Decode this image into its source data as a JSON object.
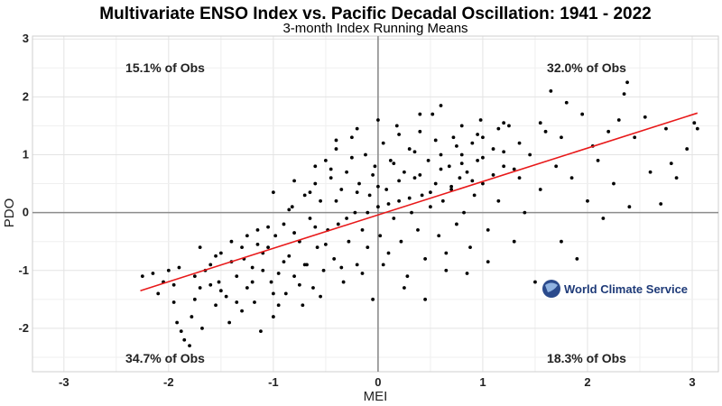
{
  "chart_data": {
    "type": "scatter",
    "title": "Multivariate ENSO Index vs. Pacific Decadal Oscillation: 1941 - 2022",
    "subtitle": "3-month Index Running Means",
    "xlabel": "MEI",
    "ylabel": "PDO",
    "xlim": [
      -3.3,
      3.25
    ],
    "ylim": [
      -2.75,
      3.05
    ],
    "xticks": [
      -3,
      -2,
      -1,
      0,
      1,
      2,
      3
    ],
    "yticks": [
      -2,
      -1,
      0,
      1,
      2,
      3
    ],
    "grid": true,
    "quadrant_labels": {
      "top_left": "15.1% of Obs",
      "top_right": "32.0% of Obs",
      "bottom_left": "34.7% of Obs",
      "bottom_right": "18.3% of Obs"
    },
    "fit_line": {
      "x": [
        -2.27,
        3.05
      ],
      "y": [
        -1.35,
        1.72
      ],
      "color": "#e8191a"
    },
    "point_color": "#000000",
    "points": [
      [
        -2.25,
        -1.1
      ],
      [
        -2.15,
        -1.05
      ],
      [
        -2.05,
        -1.2
      ],
      [
        -2.0,
        -1.0
      ],
      [
        -1.95,
        -1.25
      ],
      [
        -1.92,
        -1.9
      ],
      [
        -1.88,
        -2.05
      ],
      [
        -1.85,
        -2.2
      ],
      [
        -1.8,
        -2.3
      ],
      [
        -1.78,
        -1.8
      ],
      [
        -1.75,
        -1.5
      ],
      [
        -1.7,
        -1.3
      ],
      [
        -1.68,
        -2.0
      ],
      [
        -1.65,
        -1.0
      ],
      [
        -1.6,
        -0.9
      ],
      [
        -1.55,
        -1.6
      ],
      [
        -1.52,
        -1.2
      ],
      [
        -1.5,
        -0.7
      ],
      [
        -1.45,
        -1.45
      ],
      [
        -1.42,
        -1.9
      ],
      [
        -1.4,
        -0.5
      ],
      [
        -1.35,
        -1.1
      ],
      [
        -1.3,
        -1.7
      ],
      [
        -1.28,
        -0.8
      ],
      [
        -1.25,
        -1.3
      ],
      [
        -1.2,
        -0.95
      ],
      [
        -1.18,
        -1.55
      ],
      [
        -1.15,
        -0.3
      ],
      [
        -1.12,
        -2.05
      ],
      [
        -1.1,
        -1.0
      ],
      [
        -1.05,
        -0.6
      ],
      [
        -1.02,
        -1.2
      ],
      [
        -1.0,
        -1.8
      ],
      [
        -0.98,
        -0.4
      ],
      [
        -0.95,
        -1.05
      ],
      [
        -0.9,
        -0.2
      ],
      [
        -0.88,
        -1.4
      ],
      [
        -0.85,
        -0.75
      ],
      [
        -0.82,
        0.1
      ],
      [
        -0.8,
        -1.1
      ],
      [
        -0.75,
        -0.5
      ],
      [
        -0.72,
        -1.6
      ],
      [
        -0.7,
        0.3
      ],
      [
        -0.68,
        -0.9
      ],
      [
        -0.65,
        -0.1
      ],
      [
        -0.62,
        -1.3
      ],
      [
        -0.6,
        0.5
      ],
      [
        -0.58,
        -0.6
      ],
      [
        -0.55,
        0.2
      ],
      [
        -0.52,
        -1.0
      ],
      [
        -0.5,
        0.9
      ],
      [
        -0.48,
        -0.3
      ],
      [
        -0.45,
        0.6
      ],
      [
        -0.42,
        -0.8
      ],
      [
        -0.4,
        1.1
      ],
      [
        -0.38,
        -0.2
      ],
      [
        -0.35,
        0.4
      ],
      [
        -0.33,
        -1.2
      ],
      [
        -0.3,
        0.7
      ],
      [
        -0.28,
        -0.5
      ],
      [
        -0.25,
        1.3
      ],
      [
        -0.22,
        0.0
      ],
      [
        -0.2,
        -0.9
      ],
      [
        -0.18,
        0.5
      ],
      [
        -0.15,
        -0.3
      ],
      [
        -0.12,
        1.0
      ],
      [
        -0.1,
        -0.6
      ],
      [
        -0.08,
        0.3
      ],
      [
        -0.05,
        -1.5
      ],
      [
        -0.03,
        0.8
      ],
      [
        0.0,
        0.1
      ],
      [
        0.02,
        -0.4
      ],
      [
        0.05,
        1.2
      ],
      [
        0.08,
        0.4
      ],
      [
        0.1,
        -0.7
      ],
      [
        0.12,
        0.9
      ],
      [
        0.15,
        -0.1
      ],
      [
        0.18,
        1.5
      ],
      [
        0.2,
        0.2
      ],
      [
        0.22,
        -0.5
      ],
      [
        0.25,
        0.7
      ],
      [
        0.28,
        -1.1
      ],
      [
        0.3,
        1.1
      ],
      [
        0.32,
        0.0
      ],
      [
        0.35,
        0.6
      ],
      [
        0.38,
        -0.3
      ],
      [
        0.4,
        1.4
      ],
      [
        0.42,
        0.3
      ],
      [
        0.45,
        -0.8
      ],
      [
        0.48,
        0.9
      ],
      [
        0.5,
        0.1
      ],
      [
        0.52,
        1.7
      ],
      [
        0.55,
        0.5
      ],
      [
        0.58,
        -0.4
      ],
      [
        0.6,
        1.0
      ],
      [
        0.62,
        0.2
      ],
      [
        0.65,
        -1.0
      ],
      [
        0.68,
        0.8
      ],
      [
        0.7,
        0.4
      ],
      [
        0.72,
        1.3
      ],
      [
        0.75,
        -0.2
      ],
      [
        0.78,
        0.6
      ],
      [
        0.8,
        1.0
      ],
      [
        0.82,
        0.0
      ],
      [
        0.85,
        0.7
      ],
      [
        0.88,
        -0.6
      ],
      [
        0.9,
        1.2
      ],
      [
        0.92,
        0.3
      ],
      [
        0.95,
        0.9
      ],
      [
        0.98,
        1.6
      ],
      [
        1.0,
        0.5
      ],
      [
        1.05,
        -0.3
      ],
      [
        1.1,
        1.1
      ],
      [
        1.15,
        0.2
      ],
      [
        1.2,
        0.8
      ],
      [
        1.25,
        1.5
      ],
      [
        1.3,
        -0.5
      ],
      [
        1.35,
        0.6
      ],
      [
        1.4,
        0.0
      ],
      [
        1.45,
        1.0
      ],
      [
        1.5,
        -1.2
      ],
      [
        1.55,
        0.4
      ],
      [
        1.6,
        1.4
      ],
      [
        1.65,
        2.1
      ],
      [
        1.7,
        0.8
      ],
      [
        1.75,
        -0.5
      ],
      [
        1.8,
        1.9
      ],
      [
        1.85,
        0.6
      ],
      [
        1.9,
        -0.8
      ],
      [
        1.95,
        1.7
      ],
      [
        2.0,
        0.2
      ],
      [
        2.05,
        1.15
      ],
      [
        2.1,
        0.9
      ],
      [
        2.15,
        -0.1
      ],
      [
        2.2,
        1.4
      ],
      [
        2.25,
        0.5
      ],
      [
        2.3,
        1.6
      ],
      [
        2.35,
        2.05
      ],
      [
        2.38,
        2.25
      ],
      [
        2.4,
        0.1
      ],
      [
        2.45,
        1.3
      ],
      [
        2.55,
        1.65
      ],
      [
        2.6,
        0.7
      ],
      [
        2.7,
        0.15
      ],
      [
        2.75,
        1.45
      ],
      [
        2.8,
        0.85
      ],
      [
        2.85,
        0.6
      ],
      [
        2.95,
        1.1
      ],
      [
        3.02,
        1.55
      ],
      [
        3.05,
        1.45
      ],
      [
        -1.9,
        -0.95
      ],
      [
        -1.6,
        -1.25
      ],
      [
        -1.4,
        -0.85
      ],
      [
        -1.3,
        -0.6
      ],
      [
        -1.2,
        -1.2
      ],
      [
        -1.1,
        -0.7
      ],
      [
        -1.0,
        -1.4
      ],
      [
        -0.9,
        -0.85
      ],
      [
        -0.8,
        -0.35
      ],
      [
        -0.7,
        -0.9
      ],
      [
        -0.6,
        -0.25
      ],
      [
        -0.5,
        -0.55
      ],
      [
        -0.4,
        0.2
      ],
      [
        -0.3,
        -0.1
      ],
      [
        -0.2,
        0.35
      ],
      [
        -0.1,
        0.0
      ],
      [
        0.0,
        0.45
      ],
      [
        0.1,
        0.15
      ],
      [
        0.2,
        0.55
      ],
      [
        0.3,
        0.25
      ],
      [
        0.4,
        0.65
      ],
      [
        0.5,
        0.35
      ],
      [
        0.6,
        0.75
      ],
      [
        0.7,
        0.45
      ],
      [
        0.8,
        0.85
      ],
      [
        0.9,
        0.55
      ],
      [
        1.0,
        0.95
      ],
      [
        1.1,
        0.65
      ],
      [
        1.2,
        1.05
      ],
      [
        1.3,
        0.75
      ],
      [
        -1.7,
        -0.6
      ],
      [
        -1.5,
        -1.35
      ],
      [
        -1.35,
        -1.55
      ],
      [
        -1.15,
        -0.55
      ],
      [
        -0.95,
        -1.6
      ],
      [
        -0.75,
        -1.25
      ],
      [
        -0.55,
        -1.45
      ],
      [
        -0.35,
        -0.95
      ],
      [
        -0.15,
        -1.05
      ],
      [
        0.05,
        -0.9
      ],
      [
        0.25,
        -1.3
      ],
      [
        0.45,
        -1.5
      ],
      [
        0.65,
        -0.7
      ],
      [
        0.85,
        -1.05
      ],
      [
        1.05,
        -0.85
      ],
      [
        -1.0,
        0.35
      ],
      [
        -0.8,
        0.55
      ],
      [
        -0.6,
        0.8
      ],
      [
        -0.4,
        1.25
      ],
      [
        -0.2,
        1.45
      ],
      [
        0.0,
        1.6
      ],
      [
        0.2,
        1.35
      ],
      [
        0.4,
        1.7
      ],
      [
        0.6,
        1.85
      ],
      [
        0.8,
        1.5
      ],
      [
        1.0,
        1.3
      ],
      [
        1.2,
        1.55
      ],
      [
        -2.1,
        -1.4
      ],
      [
        -1.95,
        -1.55
      ],
      [
        -1.75,
        -1.1
      ],
      [
        -1.55,
        -0.75
      ],
      [
        -1.25,
        -0.4
      ],
      [
        -1.05,
        -0.25
      ],
      [
        -0.85,
        0.05
      ],
      [
        -0.65,
        0.35
      ],
      [
        -0.45,
        0.75
      ],
      [
        -0.25,
        0.95
      ],
      [
        -0.05,
        0.65
      ],
      [
        0.15,
        0.85
      ],
      [
        0.35,
        1.05
      ],
      [
        0.55,
        1.25
      ],
      [
        0.75,
        1.15
      ],
      [
        0.95,
        1.35
      ],
      [
        1.15,
        1.45
      ],
      [
        1.35,
        1.2
      ],
      [
        1.55,
        1.55
      ],
      [
        1.75,
        1.3
      ]
    ]
  },
  "logo": {
    "text": "World Climate Service"
  }
}
